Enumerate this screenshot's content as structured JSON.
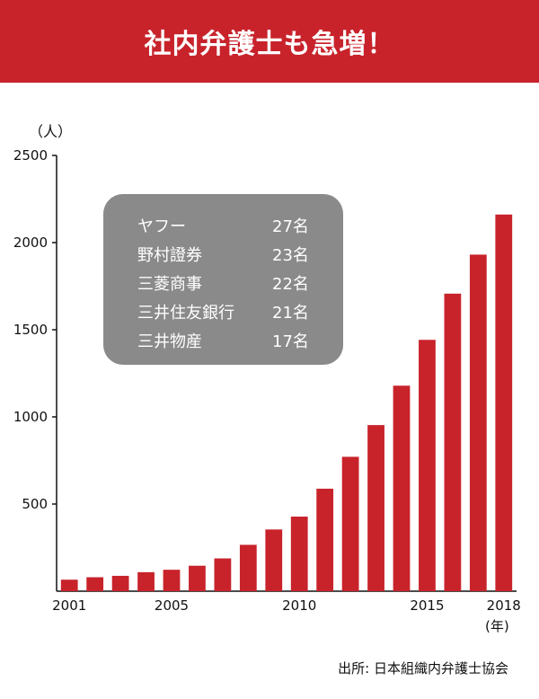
{
  "header": {
    "title": "社内弁護士も急増！"
  },
  "y_unit": "（人）",
  "x_unit": "(年)",
  "source": "出所: 日本組織内弁護士協会",
  "colors": {
    "banner": "#c8232b",
    "bar": "#c8232b",
    "infobox": "#8a8a8a"
  },
  "infobox": {
    "rows": [
      {
        "company": "ヤフー",
        "count": "27名"
      },
      {
        "company": "野村證券",
        "count": "23名"
      },
      {
        "company": "三菱商事",
        "count": "22名"
      },
      {
        "company": "三井住友銀行",
        "count": "21名"
      },
      {
        "company": "三井物産",
        "count": "17名"
      }
    ]
  },
  "chart_data": {
    "type": "bar",
    "categories": [
      "2001",
      "2002",
      "2003",
      "2004",
      "2005",
      "2006",
      "2007",
      "2008",
      "2009",
      "2010",
      "2011",
      "2012",
      "2013",
      "2014",
      "2015",
      "2016",
      "2017",
      "2018"
    ],
    "values": [
      66,
      80,
      88,
      109,
      123,
      146,
      188,
      266,
      354,
      428,
      588,
      771,
      953,
      1179,
      1442,
      1707,
      1931,
      2161
    ],
    "x_tick_labels": [
      "2001",
      "2005",
      "2010",
      "2015",
      "2018"
    ],
    "y_ticks": [
      500,
      1000,
      1500,
      2000,
      2500
    ],
    "ylim": [
      0,
      2500
    ],
    "ylabel": "（人）",
    "xlabel": "(年)",
    "grid": false
  }
}
